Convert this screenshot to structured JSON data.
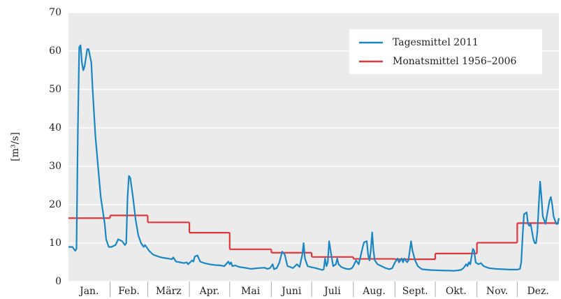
{
  "chart_data": {
    "type": "line",
    "y_label": "[m³/s]",
    "xlim": [
      0,
      365
    ],
    "ylim": [
      0,
      70
    ],
    "yticks": [
      0,
      10,
      20,
      30,
      40,
      50,
      60,
      70
    ],
    "grid": true,
    "legend": "upper right",
    "categories": [
      "Jan.",
      "Feb.",
      "März",
      "Apr.",
      "Mai",
      "Juni",
      "Juli",
      "Aug.",
      "Sept.",
      "Okt.",
      "Nov.",
      "Dez."
    ],
    "month_starts": [
      0,
      31,
      59,
      90,
      120,
      151,
      181,
      212,
      243,
      273,
      304,
      334
    ],
    "series": [
      {
        "name": "Tagesmittel 2011",
        "color": "#1a87c4",
        "x": [
          0,
          3,
          5,
          6,
          7,
          8,
          9,
          10,
          11,
          12,
          14,
          15,
          17,
          18,
          20,
          22,
          24,
          27,
          28,
          30,
          32,
          35,
          37,
          40,
          42,
          43,
          44,
          45,
          46,
          48,
          50,
          52,
          54,
          56,
          57,
          58,
          60,
          63,
          67,
          70,
          74,
          77,
          78,
          80,
          83,
          86,
          88,
          89,
          92,
          93,
          94,
          96,
          98,
          101,
          105,
          109,
          113,
          116,
          119,
          120,
          121,
          122,
          124,
          127,
          131,
          136,
          141,
          146,
          148,
          150,
          152,
          153,
          155,
          157,
          159,
          161,
          163,
          165,
          167,
          170,
          172,
          174,
          175,
          176,
          178,
          181,
          184,
          187,
          189,
          190,
          191,
          192,
          193,
          194,
          196,
          197,
          199,
          200,
          201,
          203,
          205,
          207,
          209,
          211,
          212,
          214,
          216,
          217,
          219,
          220,
          222,
          223,
          224,
          225,
          226,
          227,
          228,
          230,
          233,
          236,
          239,
          241,
          243,
          245,
          246,
          248,
          249,
          250,
          252,
          253,
          255,
          256,
          258,
          260,
          263,
          269,
          277,
          287,
          292,
          294,
          296,
          297,
          298,
          299,
          301,
          302,
          303,
          305,
          307,
          309,
          313,
          318,
          323,
          329,
          334,
          336,
          337,
          338,
          339,
          341,
          342,
          343,
          344,
          345,
          346,
          347,
          348,
          349,
          350,
          351,
          352,
          353,
          355,
          356,
          358,
          359,
          360,
          361,
          363,
          364,
          365
        ],
        "values": [
          9,
          9,
          8,
          8.5,
          40,
          61,
          61.5,
          57,
          55,
          56,
          60.5,
          60.5,
          57,
          50,
          38,
          30,
          22,
          15,
          11,
          9,
          9,
          9.5,
          11,
          10.5,
          9.5,
          10,
          22,
          27.5,
          27,
          22,
          16,
          12,
          10,
          9,
          9.5,
          9,
          8,
          7,
          6.5,
          6.2,
          6,
          5.8,
          6.3,
          5.2,
          5,
          4.8,
          5,
          4.5,
          5.5,
          5.2,
          6.5,
          6.8,
          5.2,
          4.8,
          4.5,
          4.3,
          4.2,
          4,
          5.2,
          4.5,
          5,
          4,
          4.2,
          3.8,
          3.6,
          3.3,
          3.5,
          3.6,
          3.3,
          3.5,
          4.5,
          3.2,
          3.5,
          5,
          7.8,
          7,
          4,
          3.8,
          3.5,
          4.5,
          3.8,
          7,
          10,
          6,
          4,
          3.7,
          3.5,
          3.2,
          3,
          3.2,
          6,
          4,
          5,
          10.5,
          6,
          4,
          4.5,
          6,
          4.5,
          3.8,
          3.5,
          3.3,
          3.2,
          3.5,
          4,
          5.5,
          4.5,
          6,
          9,
          10.2,
          10.5,
          7,
          5.5,
          8,
          12.8,
          8,
          5.5,
          4.5,
          4,
          3.5,
          3.2,
          3.5,
          5,
          6,
          5,
          6,
          5,
          6,
          5,
          5.5,
          10.5,
          8,
          5.5,
          4,
          3.2,
          3,
          2.9,
          2.8,
          3,
          3.5,
          4.5,
          4,
          5,
          4.5,
          8.5,
          8,
          5,
          4.5,
          4.8,
          4,
          3.5,
          3.3,
          3.2,
          3.1,
          3.1,
          3.3,
          5,
          12,
          17.5,
          18,
          15,
          14.5,
          15,
          13,
          11,
          10,
          10,
          13,
          20,
          26,
          22,
          17,
          15,
          17,
          21,
          22,
          20,
          17,
          15,
          15,
          16.5
        ]
      },
      {
        "name": "Monatsmittel 1956–2006",
        "color": "#e0373c",
        "values": [
          16.5,
          17.2,
          15.4,
          12.7,
          8.4,
          7.5,
          6.4,
          5.9,
          5.8,
          7.3,
          10.1,
          15.2
        ]
      }
    ]
  }
}
